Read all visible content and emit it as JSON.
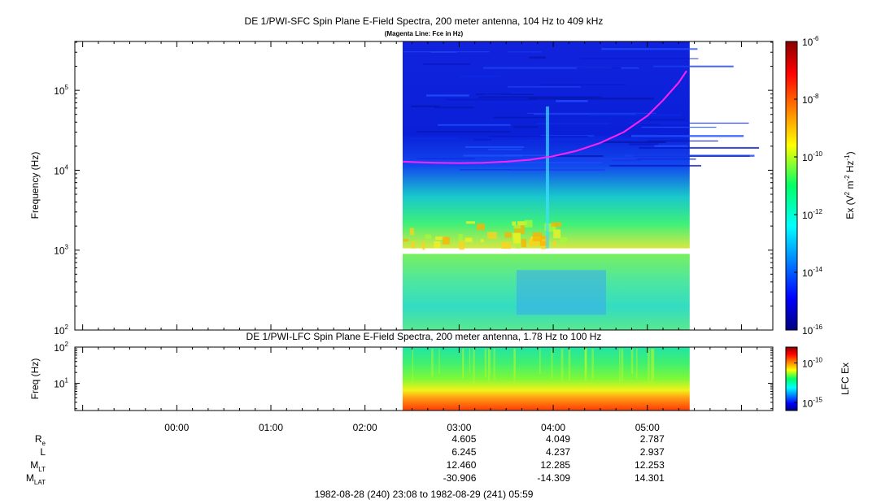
{
  "chart_data": [
    {
      "type": "heatmap",
      "title": "DE 1/PWI-SFC  Spin Plane E-Field Spectra, 200 meter antenna, 104 Hz to 409 kHz",
      "subtitle": "(Magenta Line: Fce in Hz)",
      "ylabel": "Frequency (Hz)",
      "yscale": "log",
      "ylim": [
        100,
        409000
      ],
      "yticks": [
        {
          "value": 100,
          "base": "10",
          "exp": "2"
        },
        {
          "value": 1000,
          "base": "10",
          "exp": "3"
        },
        {
          "value": 10000,
          "base": "10",
          "exp": "4"
        },
        {
          "value": 100000,
          "base": "10",
          "exp": "5"
        }
      ],
      "colorbar": {
        "label_parts": [
          "Ex (V",
          "2",
          " m",
          "-2",
          " Hz",
          "-1",
          ")"
        ],
        "scale": "log",
        "range": [
          1e-16,
          1e-06
        ],
        "ticks": [
          {
            "value": 1e-06,
            "base": "10",
            "exp": "-6"
          },
          {
            "value": 1e-08,
            "base": "10",
            "exp": "-8"
          },
          {
            "value": 1e-10,
            "base": "10",
            "exp": "-10"
          },
          {
            "value": 1e-12,
            "base": "10",
            "exp": "-12"
          },
          {
            "value": 1e-14,
            "base": "10",
            "exp": "-14"
          },
          {
            "value": 1e-16,
            "base": "10",
            "exp": "-16"
          }
        ]
      },
      "data_time_range": [
        "02:24",
        "05:27"
      ],
      "gap_frequency_hz": [
        900,
        1050
      ],
      "fce_line": {
        "color": "#ff22ff",
        "points": [
          {
            "t": "02:24",
            "f": 12800
          },
          {
            "t": "02:45",
            "f": 12400
          },
          {
            "t": "03:00",
            "f": 12300
          },
          {
            "t": "03:15",
            "f": 12400
          },
          {
            "t": "03:30",
            "f": 12800
          },
          {
            "t": "03:45",
            "f": 13500
          },
          {
            "t": "04:00",
            "f": 15000
          },
          {
            "t": "04:15",
            "f": 17500
          },
          {
            "t": "04:30",
            "f": 22000
          },
          {
            "t": "04:45",
            "f": 30000
          },
          {
            "t": "05:00",
            "f": 48000
          },
          {
            "t": "05:10",
            "f": 75000
          },
          {
            "t": "05:20",
            "f": 125000
          },
          {
            "t": "05:25",
            "f": 175000
          }
        ]
      }
    },
    {
      "type": "heatmap",
      "title": "DE 1/PWI-LFC  Spin Plane E-Field Spectra, 200 meter antenna, 1.78 Hz to 100 Hz",
      "ylabel": "Freq (Hz)",
      "yscale": "log",
      "ylim": [
        1.78,
        100
      ],
      "yticks": [
        {
          "value": 10,
          "base": "10",
          "exp": "1"
        },
        {
          "value": 100,
          "base": "10",
          "exp": "2"
        }
      ],
      "colorbar": {
        "label": "LFC Ex",
        "scale": "log",
        "range": [
          1e-16,
          1e-08
        ],
        "ticks": [
          {
            "value": 1e-10,
            "base": "10",
            "exp": "-10"
          },
          {
            "value": 1e-15,
            "base": "10",
            "exp": "-15"
          }
        ]
      },
      "data_time_range": [
        "02:24",
        "05:27"
      ]
    }
  ],
  "time_axis": {
    "tick_labels": [
      "00:00",
      "01:00",
      "02:00",
      "03:00",
      "04:00",
      "05:00"
    ],
    "time_range": [
      "22:55",
      "06:20"
    ]
  },
  "ephemeris": {
    "rows": [
      {
        "name": "R",
        "sub": "e",
        "values": [
          "4.605",
          "4.049",
          "2.787"
        ]
      },
      {
        "name": "L",
        "sub": "",
        "values": [
          "6.245",
          "4.237",
          "2.937"
        ]
      },
      {
        "name": "M",
        "sub": "LT",
        "values": [
          "12.460",
          "12.285",
          "12.253"
        ]
      },
      {
        "name": "M",
        "sub": "LAT",
        "values": [
          "-30.906",
          "-14.309",
          "14.301"
        ]
      }
    ],
    "at_times": [
      "03:00",
      "04:00",
      "05:00"
    ]
  },
  "footer": "1982-08-28 (240) 23:08 to 1982-08-29 (241) 05:59"
}
